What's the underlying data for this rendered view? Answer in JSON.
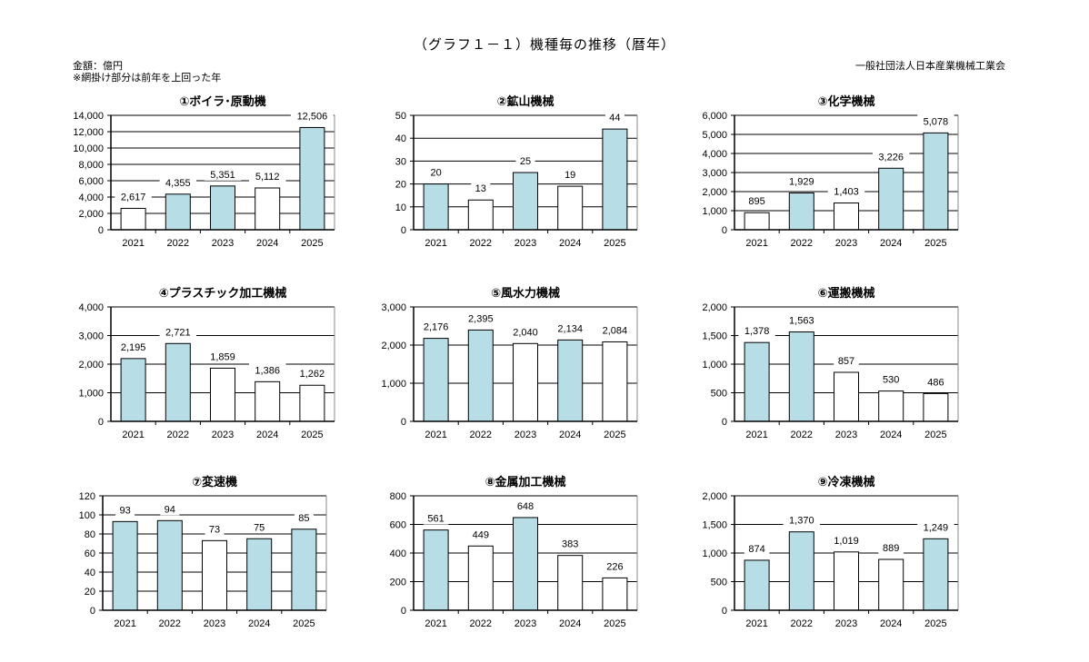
{
  "header": {
    "title": "（グラフ１－１）機種毎の推移（暦年）",
    "unit": "金額：億円",
    "note": "※網掛け部分は前年を上回った年",
    "organization": "一般社団法人日本産業機械工業会"
  },
  "colors": {
    "highlight": "#b7dde6",
    "normal": "#ffffff",
    "stroke": "#000000"
  },
  "chart_data": [
    {
      "type": "bar",
      "title": "①ボイラ･原動機",
      "categories": [
        "2021",
        "2022",
        "2023",
        "2024",
        "2025"
      ],
      "values": [
        2617,
        4355,
        5351,
        5112,
        12506
      ],
      "labels": [
        "2,617",
        "4,355",
        "5,351",
        "5,112",
        "12,506"
      ],
      "highlighted": [
        false,
        true,
        true,
        false,
        true
      ],
      "ylim": [
        0,
        14000
      ],
      "yticks": [
        "0",
        "2,000",
        "4,000",
        "6,000",
        "8,000",
        "10,000",
        "12,000",
        "14,000"
      ],
      "ystep": 2000
    },
    {
      "type": "bar",
      "title": "②鉱山機械",
      "categories": [
        "2021",
        "2022",
        "2023",
        "2024",
        "2025"
      ],
      "values": [
        20,
        13,
        25,
        19,
        44
      ],
      "labels": [
        "20",
        "13",
        "25",
        "19",
        "44"
      ],
      "highlighted": [
        true,
        false,
        true,
        false,
        true
      ],
      "ylim": [
        0,
        50
      ],
      "yticks": [
        "0",
        "10",
        "20",
        "30",
        "40",
        "50"
      ],
      "ystep": 10
    },
    {
      "type": "bar",
      "title": "③化学機械",
      "categories": [
        "2021",
        "2022",
        "2023",
        "2024",
        "2025"
      ],
      "values": [
        895,
        1929,
        1403,
        3226,
        5078
      ],
      "labels": [
        "895",
        "1,929",
        "1,403",
        "3,226",
        "5,078"
      ],
      "highlighted": [
        false,
        true,
        false,
        true,
        true
      ],
      "ylim": [
        0,
        6000
      ],
      "yticks": [
        "0",
        "1,000",
        "2,000",
        "3,000",
        "4,000",
        "5,000",
        "6,000"
      ],
      "ystep": 1000
    },
    {
      "type": "bar",
      "title": "④プラスチック加工機械",
      "categories": [
        "2021",
        "2022",
        "2023",
        "2024",
        "2025"
      ],
      "values": [
        2195,
        2721,
        1859,
        1386,
        1262
      ],
      "labels": [
        "2,195",
        "2,721",
        "1,859",
        "1,386",
        "1,262"
      ],
      "highlighted": [
        true,
        true,
        false,
        false,
        false
      ],
      "ylim": [
        0,
        4000
      ],
      "yticks": [
        "0",
        "1,000",
        "2,000",
        "3,000",
        "4,000"
      ],
      "ystep": 1000
    },
    {
      "type": "bar",
      "title": "⑤風水力機械",
      "categories": [
        "2021",
        "2022",
        "2023",
        "2024",
        "2025"
      ],
      "values": [
        2176,
        2395,
        2040,
        2134,
        2084
      ],
      "labels": [
        "2,176",
        "2,395",
        "2,040",
        "2,134",
        "2,084"
      ],
      "highlighted": [
        true,
        true,
        false,
        true,
        false
      ],
      "ylim": [
        0,
        3000
      ],
      "yticks": [
        "0",
        "1,000",
        "2,000",
        "3,000"
      ],
      "ystep": 1000
    },
    {
      "type": "bar",
      "title": "⑥運搬機械",
      "categories": [
        "2021",
        "2022",
        "2023",
        "2024",
        "2025"
      ],
      "values": [
        1378,
        1563,
        857,
        530,
        486
      ],
      "labels": [
        "1,378",
        "1,563",
        "857",
        "530",
        "486"
      ],
      "highlighted": [
        true,
        true,
        false,
        false,
        false
      ],
      "ylim": [
        0,
        2000
      ],
      "yticks": [
        "0",
        "500",
        "1,000",
        "1,500",
        "2,000"
      ],
      "ystep": 500
    },
    {
      "type": "bar",
      "title": "⑦変速機",
      "categories": [
        "2021",
        "2022",
        "2023",
        "2024",
        "2025"
      ],
      "values": [
        93,
        94,
        73,
        75,
        85
      ],
      "labels": [
        "93",
        "94",
        "73",
        "75",
        "85"
      ],
      "highlighted": [
        true,
        true,
        false,
        true,
        true
      ],
      "ylim": [
        0,
        120
      ],
      "yticks": [
        "0",
        "20",
        "40",
        "60",
        "80",
        "100",
        "120"
      ],
      "ystep": 20
    },
    {
      "type": "bar",
      "title": "⑧金属加工機械",
      "categories": [
        "2021",
        "2022",
        "2023",
        "2024",
        "2025"
      ],
      "values": [
        561,
        449,
        648,
        383,
        226
      ],
      "labels": [
        "561",
        "449",
        "648",
        "383",
        "226"
      ],
      "highlighted": [
        true,
        false,
        true,
        false,
        false
      ],
      "ylim": [
        0,
        800
      ],
      "yticks": [
        "0",
        "200",
        "400",
        "600",
        "800"
      ],
      "ystep": 200
    },
    {
      "type": "bar",
      "title": "⑨冷凍機械",
      "categories": [
        "2021",
        "2022",
        "2023",
        "2024",
        "2025"
      ],
      "values": [
        874,
        1370,
        1019,
        889,
        1249
      ],
      "labels": [
        "874",
        "1,370",
        "1,019",
        "889",
        "1,249"
      ],
      "highlighted": [
        true,
        true,
        false,
        false,
        true
      ],
      "ylim": [
        0,
        2000
      ],
      "yticks": [
        "0",
        "500",
        "1,000",
        "1,500",
        "2,000"
      ],
      "ystep": 500
    }
  ]
}
